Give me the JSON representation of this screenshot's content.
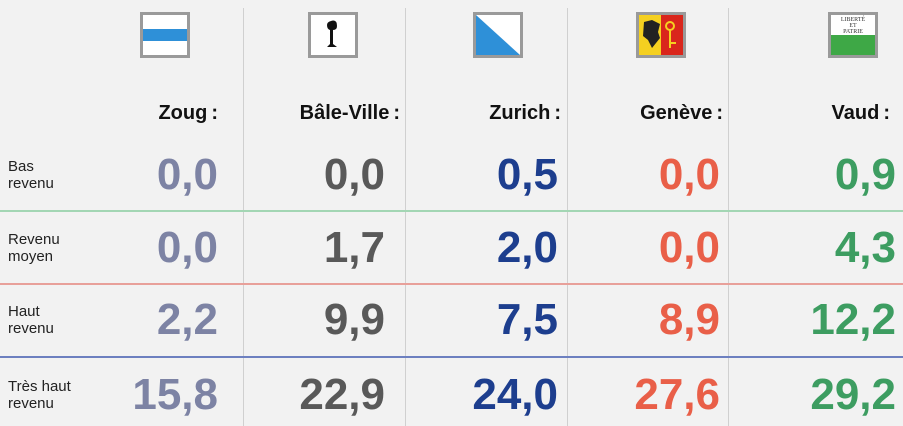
{
  "table": {
    "columns": [
      {
        "name": "Zoug :",
        "color": "#7d83a4"
      },
      {
        "name": "Bâle-Ville :",
        "color": "#595959"
      },
      {
        "name": "Zurich :",
        "color": "#1d3e8e"
      },
      {
        "name": "Genève :",
        "color": "#e95f48"
      },
      {
        "name": "Vaud :",
        "color": "#3d9d61"
      }
    ],
    "vaud_flag_text": [
      "LIBERTÉ",
      "ET",
      "PATRIE"
    ],
    "rows": [
      {
        "label": [
          "Bas",
          "revenu"
        ],
        "line_color": "#a3d6b4",
        "values": [
          "0,0",
          "0,0",
          "0,5",
          "0,0",
          "0,9"
        ]
      },
      {
        "label": [
          "Revenu",
          "moyen"
        ],
        "line_color": "#e8a09a",
        "values": [
          "0,0",
          "1,7",
          "2,0",
          "0,0",
          "4,3"
        ]
      },
      {
        "label": [
          "Haut",
          "revenu"
        ],
        "line_color": "#6d80c0",
        "values": [
          "2,2",
          "9,9",
          "7,5",
          "8,9",
          "12,2"
        ]
      },
      {
        "label": [
          "Très haut",
          "revenu"
        ],
        "values": [
          "15,8",
          "22,9",
          "24,0",
          "27,6",
          "29,2"
        ]
      }
    ]
  }
}
